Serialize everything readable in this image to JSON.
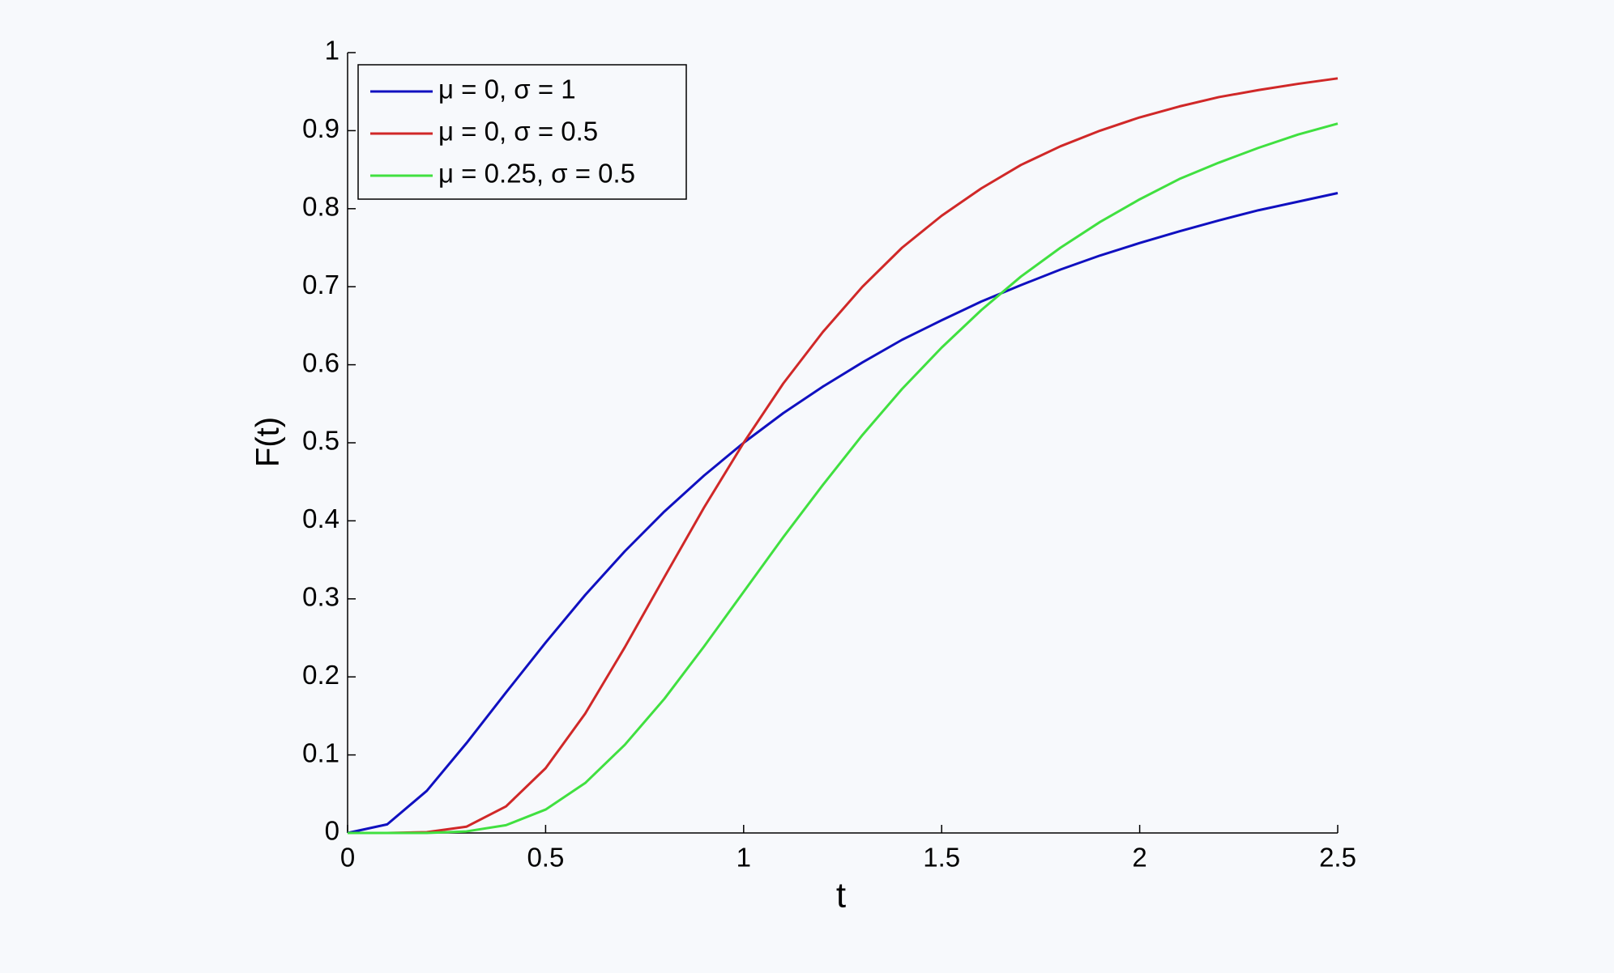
{
  "chart_data": {
    "type": "line",
    "xlabel": "t",
    "ylabel": "F(t)",
    "x": [
      0,
      0.1,
      0.2,
      0.3,
      0.4,
      0.5,
      0.6,
      0.7,
      0.8,
      0.9,
      1.0,
      1.1,
      1.2,
      1.3,
      1.4,
      1.5,
      1.6,
      1.7,
      1.8,
      1.9,
      2.0,
      2.1,
      2.2,
      2.3,
      2.4,
      2.5
    ],
    "series": [
      {
        "name": "μ = 0, σ = 1",
        "color": "#1010c0",
        "values": [
          0,
          0.011,
          0.054,
          0.115,
          0.18,
          0.244,
          0.305,
          0.361,
          0.412,
          0.458,
          0.5,
          0.538,
          0.572,
          0.603,
          0.632,
          0.657,
          0.681,
          0.702,
          0.722,
          0.74,
          0.756,
          0.771,
          0.785,
          0.798,
          0.809,
          0.82
        ]
      },
      {
        "name": "μ = 0, σ = 0.5",
        "color": "#d02828",
        "values": [
          0,
          0,
          0.001,
          0.008,
          0.034,
          0.083,
          0.153,
          0.238,
          0.328,
          0.417,
          0.5,
          0.576,
          0.642,
          0.7,
          0.75,
          0.791,
          0.826,
          0.856,
          0.88,
          0.9,
          0.917,
          0.931,
          0.943,
          0.952,
          0.96,
          0.967
        ]
      },
      {
        "name": "μ = 0.25, σ = 0.5",
        "color": "#40e040",
        "values": [
          0,
          0,
          0,
          0.002,
          0.01,
          0.03,
          0.064,
          0.113,
          0.172,
          0.239,
          0.309,
          0.379,
          0.446,
          0.51,
          0.569,
          0.622,
          0.67,
          0.713,
          0.75,
          0.783,
          0.812,
          0.838,
          0.859,
          0.878,
          0.895,
          0.909
        ]
      }
    ],
    "xlim": [
      0,
      2.5
    ],
    "ylim": [
      0,
      1
    ],
    "xticks": [
      0,
      0.5,
      1,
      1.5,
      2,
      2.5
    ],
    "yticks": [
      0,
      0.1,
      0.2,
      0.3,
      0.4,
      0.5,
      0.6,
      0.7,
      0.8,
      0.9,
      1
    ],
    "grid": false,
    "legend": "upper left"
  }
}
